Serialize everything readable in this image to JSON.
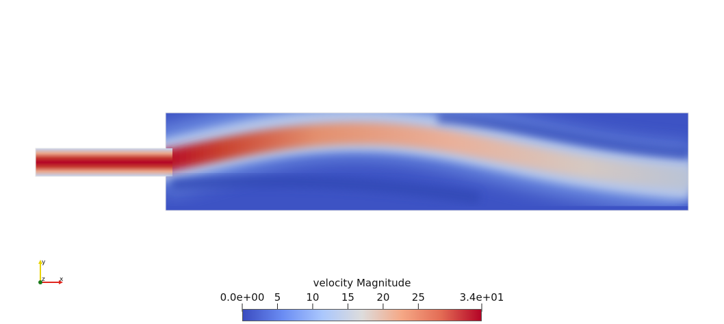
{
  "scene": {
    "field": "velocity Magnitude",
    "geometry": "channel with sudden expansion",
    "colormap": [
      "#3b4cc0",
      "#6a8cf3",
      "#aac7fd",
      "#dddcdc",
      "#f5a886",
      "#e36b54",
      "#b40426"
    ]
  },
  "colorbar": {
    "title": "velocity Magnitude",
    "range": [
      0,
      34
    ],
    "ticks": [
      {
        "label": "0.0e+00",
        "value": 0
      },
      {
        "label": "5",
        "value": 5
      },
      {
        "label": "10",
        "value": 10
      },
      {
        "label": "15",
        "value": 15
      },
      {
        "label": "20",
        "value": 20
      },
      {
        "label": "25",
        "value": 25
      },
      {
        "label": "3.4e+01",
        "value": 34
      }
    ]
  },
  "axes_triad": {
    "x_label": "x",
    "y_label": "y",
    "z_label": "z",
    "x_color": "#e0251d",
    "y_color": "#e8d200",
    "z_color": "#1a7a1a"
  }
}
